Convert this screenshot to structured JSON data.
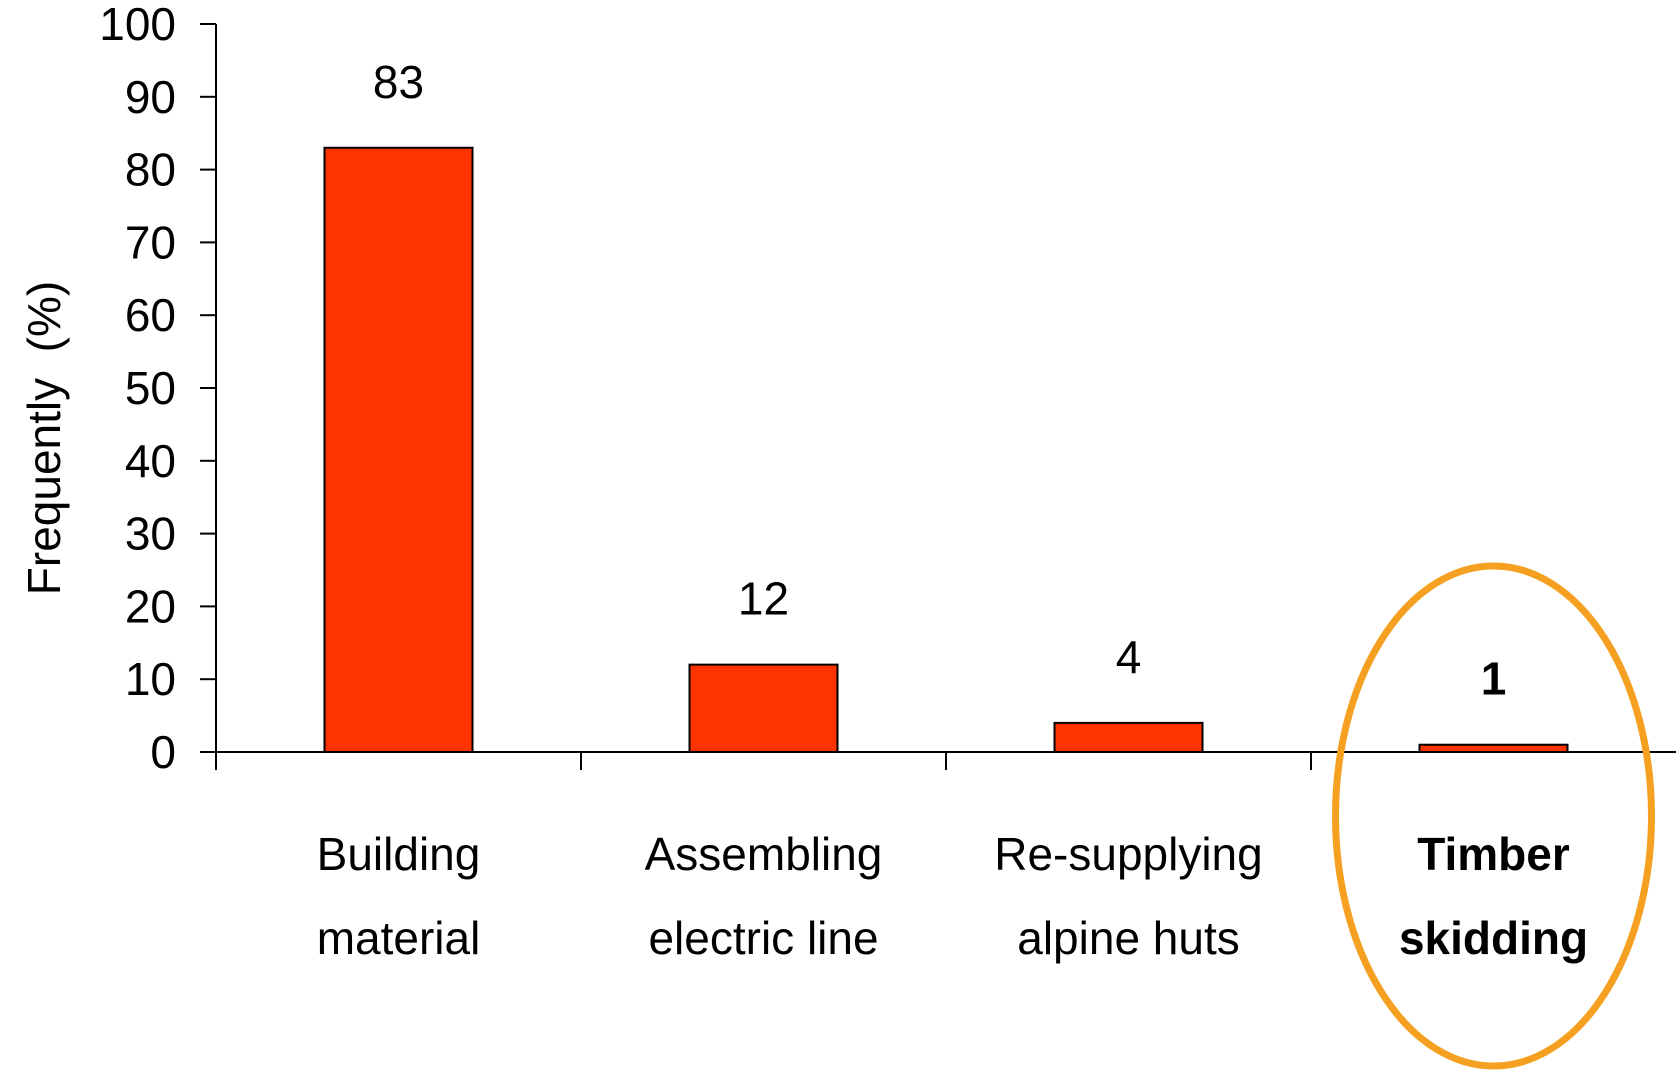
{
  "chart_data": {
    "type": "bar",
    "categories": [
      [
        "Building",
        "material"
      ],
      [
        "Assembling",
        "electric line"
      ],
      [
        "Re-supplying",
        "alpine huts"
      ],
      [
        "Timber",
        "skidding"
      ]
    ],
    "values": [
      83,
      12,
      4,
      1
    ],
    "data_labels": [
      "83",
      "12",
      "4",
      "1"
    ],
    "ylabel": "Frequently  (%)",
    "xlabel": "",
    "title": "",
    "ylim": [
      0,
      100
    ],
    "yticks": [
      0,
      10,
      20,
      30,
      40,
      50,
      60,
      70,
      80,
      90,
      100
    ],
    "grid": false,
    "highlighted_category_index": 3,
    "colors": {
      "bar_fill": "#ff3300",
      "bar_stroke": "#000000",
      "highlight_ellipse": "#f5a020",
      "axis": "#000000"
    }
  }
}
